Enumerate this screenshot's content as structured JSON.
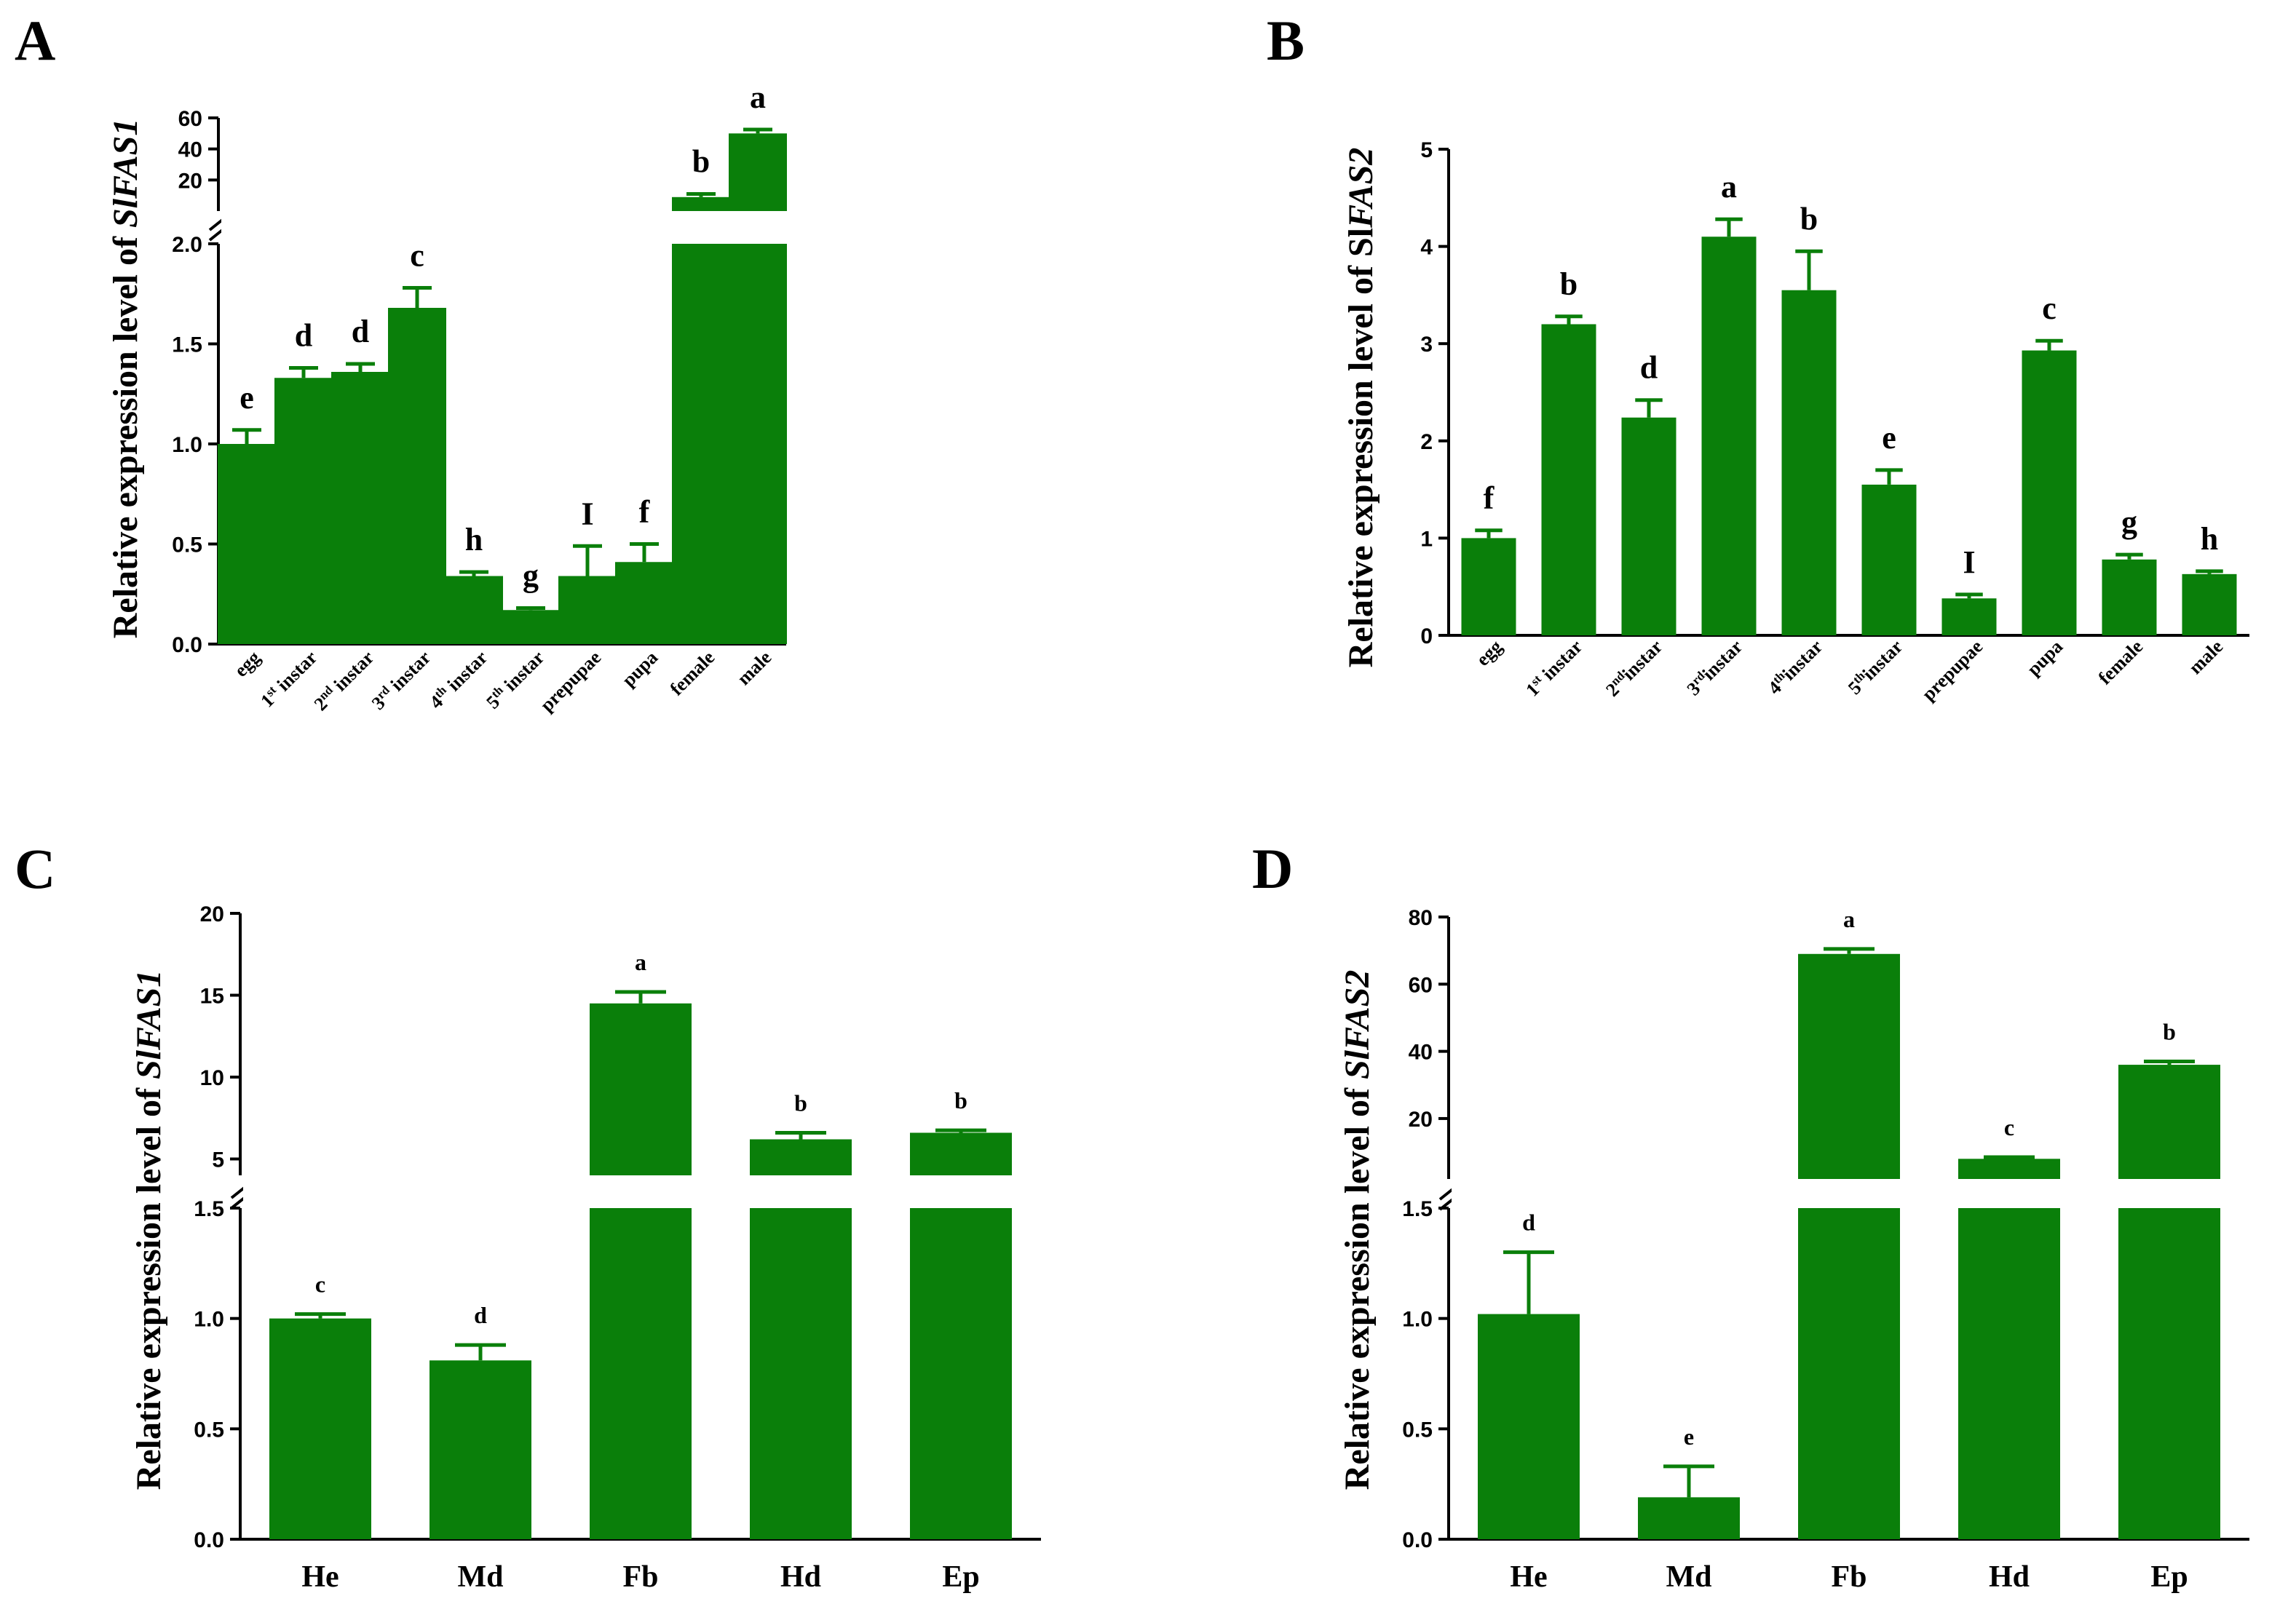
{
  "chart_data": [
    {
      "panel": "A",
      "type": "bar",
      "ylabel_parts": [
        "Relative expression level  of ",
        "SlFAS1"
      ],
      "categories": [
        "egg",
        "1st instar",
        "2nd instar",
        "3rd instar",
        "4th instar",
        "5th instar",
        "prepupae",
        "pupa",
        "female",
        "male"
      ],
      "category_labels": [
        [
          "egg",
          ""
        ],
        [
          "1",
          "st",
          " instar"
        ],
        [
          "2",
          "nd",
          " instar"
        ],
        [
          "3",
          "rd",
          " instar"
        ],
        [
          "4",
          "th",
          " instar"
        ],
        [
          "5",
          "th",
          " instar"
        ],
        [
          "prepupae",
          ""
        ],
        [
          "pupa",
          ""
        ],
        [
          "female",
          ""
        ],
        [
          "male",
          ""
        ]
      ],
      "values": [
        1.0,
        1.33,
        1.36,
        1.68,
        0.34,
        0.17,
        0.34,
        0.41,
        9.0,
        50.0
      ],
      "errors": [
        0.07,
        0.05,
        0.04,
        0.1,
        0.02,
        0.01,
        0.15,
        0.09,
        2.0,
        2.5
      ],
      "significance": [
        "e",
        "d",
        "d",
        "c",
        "h",
        "g",
        "I",
        "f",
        "b",
        "a"
      ],
      "y_segments": [
        {
          "range": [
            0,
            2.0
          ],
          "ticks": [
            "0.0",
            "0.5",
            "1.0",
            "1.5",
            "2.0"
          ],
          "tick_values": [
            0,
            0.5,
            1.0,
            1.5,
            2.0
          ]
        },
        {
          "range": [
            0,
            60
          ],
          "ticks": [
            "20",
            "40",
            "60"
          ],
          "tick_values": [
            20,
            40,
            60
          ]
        }
      ],
      "rotated_labels": true
    },
    {
      "panel": "B",
      "type": "bar",
      "ylabel_parts": [
        "Relative expression level  of Sl",
        "FAS2"
      ],
      "categories": [
        "egg",
        "1st instar",
        "2nd instar",
        "3rd instar",
        "4th instar",
        "5th instar",
        "prepupae",
        "pupa",
        "female",
        "male"
      ],
      "category_labels": [
        [
          "egg",
          ""
        ],
        [
          "1",
          "st",
          " instar"
        ],
        [
          "2",
          "nd",
          "instar"
        ],
        [
          "3",
          "rd",
          "instar"
        ],
        [
          "4",
          "th",
          "instar"
        ],
        [
          "5",
          "th",
          "instar"
        ],
        [
          "prepupae",
          ""
        ],
        [
          "pupa",
          ""
        ],
        [
          "female",
          ""
        ],
        [
          "male",
          ""
        ]
      ],
      "values": [
        1.0,
        3.2,
        2.24,
        4.1,
        3.55,
        1.55,
        0.38,
        2.93,
        0.78,
        0.63
      ],
      "errors": [
        0.08,
        0.08,
        0.18,
        0.18,
        0.4,
        0.15,
        0.04,
        0.1,
        0.05,
        0.03
      ],
      "significance": [
        "f",
        "b",
        "d",
        "a",
        "b",
        "e",
        "I",
        "c",
        "g",
        "h"
      ],
      "y_segments": [
        {
          "range": [
            0,
            5
          ],
          "ticks": [
            "0",
            "1",
            "2",
            "3",
            "4",
            "5"
          ],
          "tick_values": [
            0,
            1,
            2,
            3,
            4,
            5
          ]
        }
      ],
      "rotated_labels": true
    },
    {
      "panel": "C",
      "type": "bar",
      "ylabel_parts": [
        "Relative expression level of  ",
        "SlFAS1"
      ],
      "categories": [
        "He",
        "Md",
        "Fb",
        "Hd",
        "Ep"
      ],
      "category_labels": [
        [
          "He",
          ""
        ],
        [
          "Md",
          ""
        ],
        [
          "Fb",
          ""
        ],
        [
          "Hd",
          ""
        ],
        [
          "Ep",
          ""
        ]
      ],
      "values": [
        1.0,
        0.81,
        14.5,
        6.2,
        6.6
      ],
      "errors": [
        0.02,
        0.07,
        0.7,
        0.4,
        0.15
      ],
      "significance": [
        "c",
        "d",
        "a",
        "b",
        "b"
      ],
      "y_segments": [
        {
          "range": [
            0,
            1.5
          ],
          "ticks": [
            "0.0",
            "0.5",
            "1.0",
            "1.5"
          ],
          "tick_values": [
            0,
            0.5,
            1.0,
            1.5
          ]
        },
        {
          "range": [
            4,
            20
          ],
          "ticks": [
            "5",
            "10",
            "15",
            "20"
          ],
          "tick_values": [
            5,
            10,
            15,
            20
          ]
        }
      ],
      "rotated_labels": false
    },
    {
      "panel": "D",
      "type": "bar",
      "ylabel_parts": [
        "Relative expression level of  ",
        "SlFAS2"
      ],
      "categories": [
        "He",
        "Md",
        "Fb",
        "Hd",
        "Ep"
      ],
      "category_labels": [
        [
          "He",
          ""
        ],
        [
          "Md",
          ""
        ],
        [
          "Fb",
          ""
        ],
        [
          "Hd",
          ""
        ],
        [
          "Ep",
          ""
        ]
      ],
      "values": [
        1.02,
        0.19,
        69.0,
        8.0,
        36.0
      ],
      "errors": [
        0.28,
        0.14,
        1.5,
        0.5,
        1.0
      ],
      "significance": [
        "d",
        "e",
        "a",
        "c",
        "b"
      ],
      "y_segments": [
        {
          "range": [
            0,
            1.5
          ],
          "ticks": [
            "0.0",
            "0.5",
            "1.0",
            "1.5"
          ],
          "tick_values": [
            0,
            0.5,
            1.0,
            1.5
          ]
        },
        {
          "range": [
            2,
            80
          ],
          "ticks": [
            "20",
            "40",
            "60",
            "80"
          ],
          "tick_values": [
            20,
            40,
            60,
            80
          ]
        }
      ],
      "rotated_labels": false
    }
  ],
  "colors": {
    "bar": "#0a7f0a",
    "axis": "#000000"
  }
}
